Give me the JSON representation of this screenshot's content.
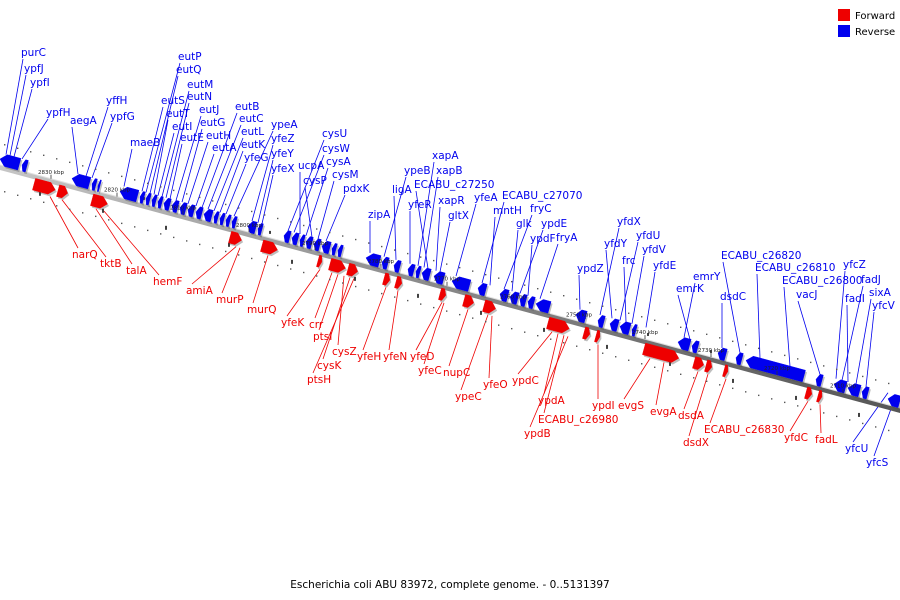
{
  "caption": "Escherichia coli ABU 83972, complete genome. - 0..5131397",
  "legend": {
    "forward": {
      "label": "Forward",
      "color": "#ee0000"
    },
    "reverse": {
      "label": "Reverse",
      "color": "#0000ee"
    }
  },
  "ticks": [
    "2830 kbp",
    "2820 kbp",
    "2810 kbp",
    "2800 kbp",
    "2790 kbp",
    "2780 kbp",
    "2770 kbp",
    "2760 kbp",
    "2750 kbp",
    "2740 kbp",
    "2730 kbp",
    "2720 kbp",
    "2710 kbp"
  ],
  "reverse_genes": [
    "purC",
    "ypfJ",
    "ypfI",
    "ypfH",
    "aegA",
    "yffH",
    "ypfG",
    "maeB",
    "eutS",
    "eutP",
    "eutQ",
    "eutT",
    "eutI",
    "eutM",
    "eutN",
    "eutE",
    "eutJ",
    "eutG",
    "eutH",
    "eutA",
    "eutB",
    "eutC",
    "eutL",
    "eutK",
    "yfeG",
    "ypeA",
    "yfeZ",
    "yfeY",
    "yfeX",
    "cysU",
    "cysW",
    "ucpA",
    "cysA",
    "cysP",
    "cysM",
    "pdxK",
    "zipA",
    "ypeB",
    "ligA",
    "yfeR",
    "xapA",
    "xapB",
    "ECABU_c27250",
    "xapR",
    "gltX",
    "yfeA",
    "ECABU_c27070",
    "mntH",
    "fryC",
    "glk",
    "ypdE",
    "ypdF",
    "fryA",
    "ypdZ",
    "yfdX",
    "yfdY",
    "yfdU",
    "frc",
    "yfdV",
    "yfdE",
    "emrY",
    "emrK",
    "dsdC",
    "ECABU_c26820",
    "ECABU_c26810",
    "ECABU_c26800",
    "yfcZ",
    "vacJ",
    "fadJ",
    "fadI",
    "sixA",
    "yfcV",
    "yfcU",
    "yfcS"
  ],
  "forward_genes": [
    "narQ",
    "tktB",
    "talA",
    "hemF",
    "amiA",
    "murP",
    "murQ",
    "yfeK",
    "crr",
    "ptsI",
    "cysZ",
    "cysK",
    "ptsH",
    "yfeH",
    "yfeN",
    "yfeD",
    "yfeC",
    "nupC",
    "yfeO",
    "ypeC",
    "ypdC",
    "ypdA",
    "ECABU_c26980",
    "ypdB",
    "ypdI",
    "evgS",
    "evgA",
    "dsdA",
    "dsdX",
    "ECABU_c26830",
    "yfdC",
    "fadL"
  ]
}
